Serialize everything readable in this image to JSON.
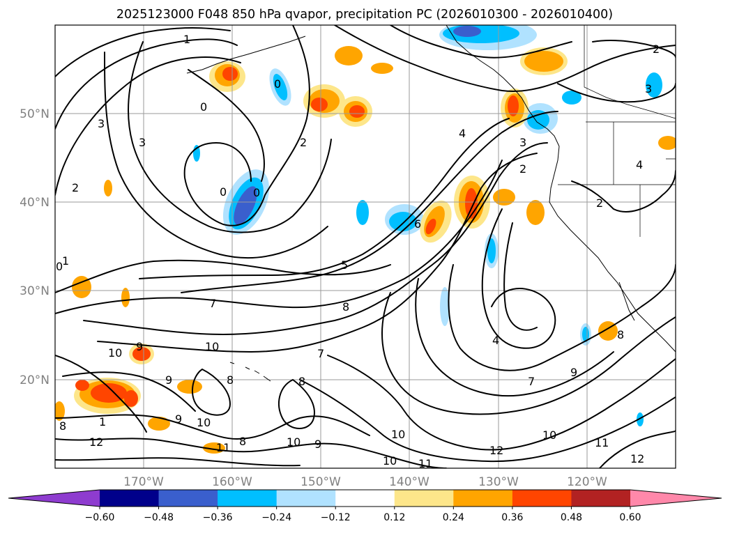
{
  "title": "2025123000 F048 850 hPa qvapor, precipitation PC (2026010300 - 2026010400)",
  "map": {
    "lat_labels": [
      "50°N",
      "40°N",
      "30°N",
      "20°N"
    ],
    "lon_labels": [
      "170°W",
      "160°W",
      "150°W",
      "140°W",
      "130°W",
      "120°W"
    ],
    "gridlines": true
  },
  "contour_labels": [
    "1",
    "2",
    "3",
    "4",
    "0",
    "0",
    "2",
    "3",
    "3",
    "2",
    "4",
    "3",
    "0",
    "0",
    "2",
    "6",
    "1",
    "0",
    "5",
    "7",
    "8",
    "4",
    "10",
    "9",
    "10",
    "7",
    "8",
    "9",
    "8",
    "9",
    "10",
    "11",
    "8",
    "10",
    "9",
    "10",
    "10",
    "11",
    "12",
    "10",
    "12",
    "11",
    "12",
    "7",
    "9",
    "8",
    "1",
    "2",
    "8"
  ],
  "colorbar": {
    "ticks": [
      "−0.60",
      "−0.48",
      "−0.36",
      "−0.24",
      "−0.12",
      "0.12",
      "0.24",
      "0.36",
      "0.48",
      "0.60"
    ],
    "colors": [
      "#8e3ccf",
      "#00008b",
      "#3a5fcd",
      "#00bfff",
      "#b0e2ff",
      "#ffffff",
      "#fde68a",
      "#ffa500",
      "#ff4500",
      "#b22222",
      "#ff88aa"
    ]
  },
  "shading_colors": {
    "neg_light": "#b0e2ff",
    "neg_mid": "#00bfff",
    "neg_strong": "#3a5fcd",
    "pos_light": "#fde68a",
    "pos_mid": "#ffa500",
    "pos_strong": "#ff4500"
  }
}
